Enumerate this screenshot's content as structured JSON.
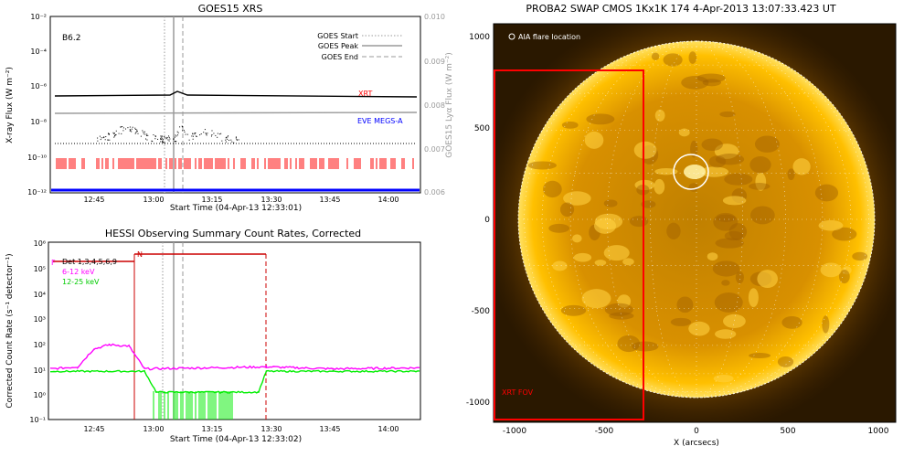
{
  "colors": {
    "xrt": "#ff0000",
    "eve": "#0000ff",
    "goes_curve": "#000000",
    "lya_curve": "#9a9a9a",
    "marker_gray": "#9a9a9a",
    "magenta": "#ff00ff",
    "green": "#00ee00",
    "dark_red": "#cc0000",
    "sun": "#f0a000",
    "aia_circle": "#ffffff"
  },
  "goes": {
    "title": "GOES15 XRS",
    "class_label": "B6.2",
    "ylabel_left": "X-ray Flux (W m⁻²)",
    "ylabel_right": "GOES15 Lyα Flux (W m⁻²)",
    "xlabel": "Start Time (04-Apr-13 12:33:01)",
    "y_ticks": [
      "10⁻²",
      "10⁻⁴",
      "10⁻⁶",
      "10⁻⁸",
      "10⁻¹⁰",
      "10⁻¹²"
    ],
    "y_right_ticks": [
      "0.010",
      "0.009",
      "0.008",
      "0.007",
      "0.006"
    ],
    "x_ticks": [
      "12:45",
      "13:00",
      "13:15",
      "13:30",
      "13:45",
      "14:00"
    ],
    "legend": [
      "GOES Start",
      "GOES Peak",
      "GOES End"
    ],
    "xrt_label": "XRT",
    "eve_label": "EVE MEGS-A"
  },
  "hessi": {
    "title": "HESSI Observing Summary Count Rates, Corrected",
    "ylabel": "Corrected Count Rate (s⁻¹ detector⁻¹)",
    "xlabel": "Start Time (04-Apr-13 12:33:02)",
    "y_ticks": [
      "10⁶",
      "10⁵",
      "10⁴",
      "10³",
      "10²",
      "10¹",
      "10⁰",
      "10⁻¹"
    ],
    "x_ticks": [
      "12:45",
      "13:00",
      "13:15",
      "13:30",
      "13:45",
      "14:00"
    ],
    "legend": [
      "Det 1,3,4,5,6,9",
      "6-12 keV",
      "12-25 keV"
    ],
    "flag_f": "F",
    "flag_n": "N"
  },
  "swap": {
    "title": "PROBA2 SWAP CMOS 1Kx1K 174   4-Apr-2013 13:07:33.423 UT",
    "aia_label": "AIA flare location",
    "xrt_fov_label": "XRT FOV",
    "xlabel": "X (arcsecs)",
    "x_ticks": [
      "-1000",
      "-500",
      "0",
      "500",
      "1000"
    ],
    "y_ticks": [
      "1000",
      "500",
      "0",
      "-500",
      "-1000"
    ]
  },
  "chart_data": [
    {
      "type": "line",
      "title": "GOES15 XRS",
      "xlabel": "Start Time (04-Apr-13 12:33:01)",
      "ylabel": "X-ray Flux (W m⁻²)",
      "ylabel_right": "GOES15 Lyα Flux (W m⁻²)",
      "x_range": [
        "12:33",
        "14:07"
      ],
      "ylim": [
        1e-12,
        0.01
      ],
      "ylim_right": [
        0.006,
        0.01
      ],
      "yscale": "log",
      "legend": "top-right",
      "event_markers": {
        "goes_start": "13:03",
        "goes_peak": "13:05",
        "goes_end": "13:07"
      },
      "series": [
        {
          "name": "XRT",
          "approx_level": 4e-07
        },
        {
          "name": "EVE MEGS-A",
          "approx_level": 1e-12
        }
      ]
    },
    {
      "type": "line",
      "title": "HESSI Observing Summary Count Rates, Corrected",
      "xlabel": "Start Time (04-Apr-13 12:33:02)",
      "ylabel": "Corrected Count Rate (s⁻¹ detector⁻¹)",
      "x_range": [
        "12:33",
        "14:07"
      ],
      "ylim": [
        0.1,
        1000000.0
      ],
      "yscale": "log",
      "legend": "top-left",
      "series": [
        {
          "name": "6-12 keV",
          "x": [
            "12:33",
            "12:40",
            "12:44",
            "12:48",
            "12:53",
            "12:57",
            "13:28",
            "13:45",
            "14:07"
          ],
          "y": [
            10,
            12,
            60,
            90,
            80,
            10,
            12,
            10,
            11
          ]
        },
        {
          "name": "12-25 keV",
          "x": [
            "12:33",
            "12:57",
            "13:00",
            "13:26",
            "13:28",
            "13:45",
            "14:07"
          ],
          "y": [
            8,
            8,
            1.2,
            1.2,
            8,
            8,
            8
          ]
        }
      ]
    }
  ]
}
